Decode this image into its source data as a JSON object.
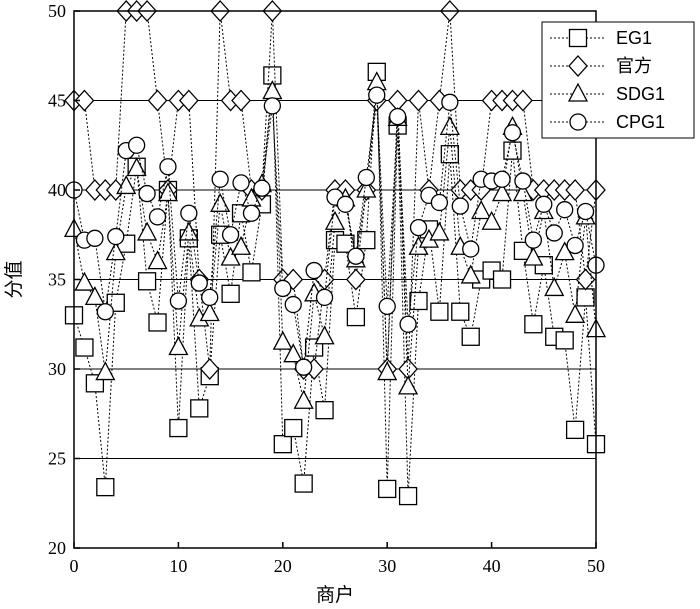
{
  "chart_data": {
    "type": "line",
    "title": "",
    "xlabel": "商户",
    "ylabel": "分值",
    "xlim": [
      0,
      50
    ],
    "ylim": [
      20,
      50
    ],
    "xticks": [
      0,
      10,
      20,
      30,
      40,
      50
    ],
    "yticks": [
      20,
      25,
      30,
      35,
      40,
      45,
      50
    ],
    "xtick_labels": [
      "0",
      "10",
      "20",
      "30",
      "40",
      "50"
    ],
    "ytick_labels": [
      "20",
      "25",
      "30",
      "35",
      "40",
      "45",
      "50"
    ],
    "grid": "horizontal",
    "legend_position": "top-right",
    "x": [
      0,
      1,
      2,
      3,
      4,
      5,
      6,
      7,
      8,
      9,
      10,
      11,
      12,
      13,
      14,
      15,
      16,
      17,
      18,
      19,
      20,
      21,
      22,
      23,
      24,
      25,
      26,
      27,
      28,
      29,
      30,
      31,
      32,
      33,
      34,
      35,
      36,
      37,
      38,
      39,
      40,
      41,
      42,
      43,
      44,
      45,
      46,
      47,
      48,
      49,
      50
    ],
    "series": [
      {
        "name": "EG1",
        "marker": "square",
        "values": [
          33.0,
          31.2,
          29.2,
          23.4,
          33.7,
          37.0,
          41.3,
          34.9,
          32.6,
          40.0,
          26.7,
          37.3,
          27.8,
          29.6,
          37.5,
          34.2,
          38.7,
          35.4,
          39.2,
          46.4,
          25.8,
          26.7,
          23.6,
          31.2,
          27.7,
          37.2,
          37.0,
          32.9,
          37.2,
          46.6,
          23.3,
          43.6,
          22.9,
          33.8,
          37.8,
          33.2,
          42.0,
          33.2,
          31.8,
          35.0,
          35.5,
          35.0,
          42.2,
          36.6,
          32.5,
          35.8,
          31.8,
          31.6,
          26.6,
          34.0,
          25.8
        ]
      },
      {
        "name": "官方",
        "marker": "diamond",
        "values": [
          45,
          45,
          40,
          40,
          40,
          50,
          50,
          50,
          45,
          40,
          45,
          45,
          35,
          30,
          50,
          45,
          45,
          40,
          40,
          50,
          35,
          35,
          30,
          30,
          35,
          40,
          40,
          35,
          40,
          45,
          30,
          45,
          30,
          45,
          40,
          45,
          50,
          40,
          40,
          40,
          45,
          45,
          45,
          45,
          40,
          40,
          40,
          40,
          40,
          35,
          40
        ]
      },
      {
        "name": "SDG1",
        "marker": "triangle",
        "values": [
          37.8,
          34.8,
          34.0,
          29.8,
          36.5,
          40.2,
          41.2,
          37.6,
          36.0,
          39.8,
          31.2,
          37.6,
          32.8,
          33.1,
          39.2,
          36.2,
          36.8,
          39.5,
          40.3,
          45.5,
          31.5,
          30.8,
          28.2,
          34.2,
          31.8,
          38.2,
          39.5,
          36.1,
          40.0,
          46.0,
          29.8,
          44.0,
          29.0,
          36.8,
          37.2,
          37.6,
          43.5,
          36.8,
          35.2,
          38.8,
          38.2,
          39.8,
          43.5,
          39.8,
          36.2,
          38.8,
          34.5,
          36.5,
          33.0,
          38.5,
          32.2
        ]
      },
      {
        "name": "CPG1",
        "marker": "circle",
        "values": [
          40.0,
          37.2,
          37.3,
          33.2,
          37.4,
          42.2,
          42.5,
          39.8,
          38.5,
          41.3,
          33.8,
          38.7,
          34.8,
          34.0,
          40.6,
          37.5,
          40.4,
          38.7,
          40.1,
          44.7,
          34.5,
          33.6,
          30.1,
          35.5,
          34.0,
          39.6,
          39.2,
          36.3,
          40.7,
          45.3,
          33.5,
          44.1,
          32.5,
          37.9,
          39.7,
          39.3,
          44.9,
          39.1,
          36.7,
          40.6,
          40.5,
          40.6,
          43.2,
          40.5,
          37.2,
          39.2,
          37.6,
          38.9,
          36.9,
          38.8,
          35.8
        ]
      }
    ]
  }
}
